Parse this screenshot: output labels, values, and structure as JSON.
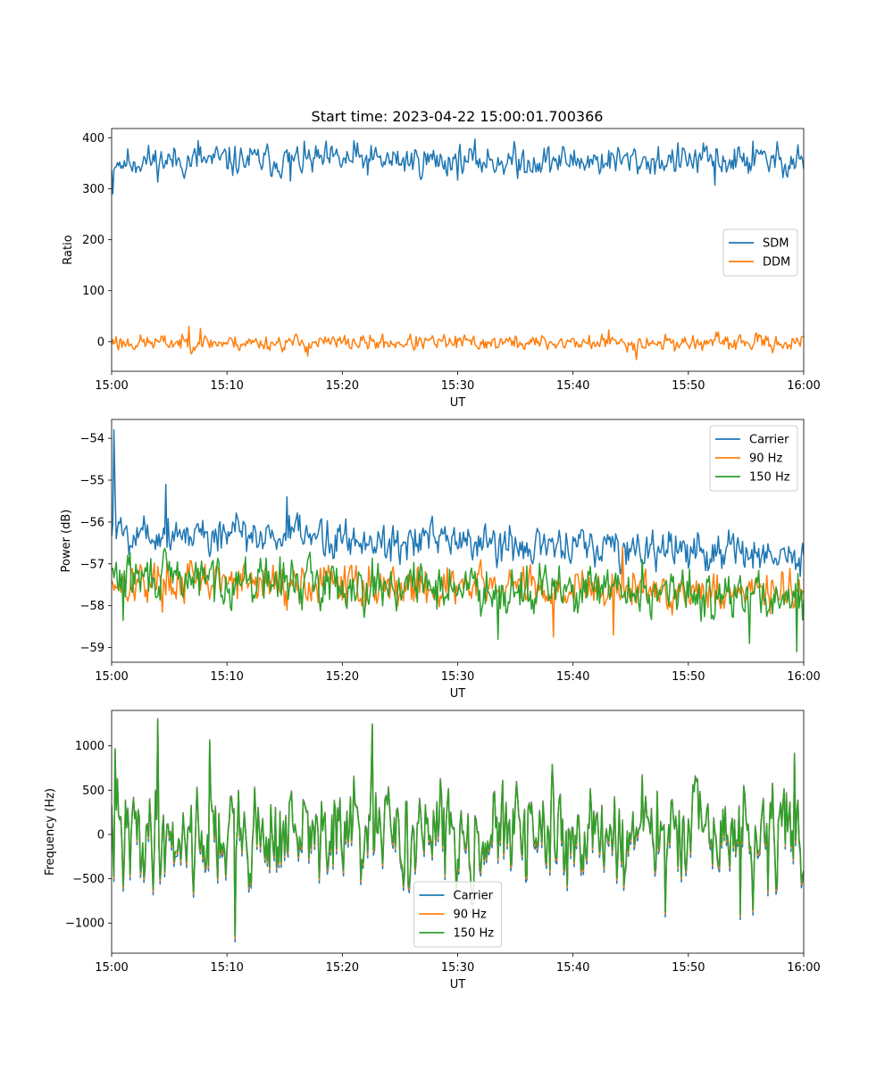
{
  "figure": {
    "title": "Start time: 2023-04-22 15:00:01.700366"
  },
  "chart_data": [
    {
      "type": "line",
      "name": "ratio-panel",
      "xlabel": "UT",
      "ylabel": "Ratio",
      "xlim": [
        "15:00",
        "16:00"
      ],
      "ylim": [
        -58,
        418
      ],
      "xticks": [
        "15:00",
        "15:10",
        "15:20",
        "15:30",
        "15:40",
        "15:50",
        "16:00"
      ],
      "yticks": [
        0,
        100,
        200,
        300,
        400
      ],
      "legend_loc": "center-right",
      "series": [
        {
          "name": "SDM",
          "color": "#1f77b4",
          "mean": 355,
          "amp": 22,
          "seed": 11,
          "spikes": [
            [
              0.1,
              290
            ],
            [
              1,
              340
            ],
            [
              7.5,
              394
            ],
            [
              15.5,
              315
            ],
            [
              21,
              394
            ],
            [
              35.2,
              320
            ],
            [
              55.6,
              393
            ],
            [
              52.3,
              307
            ],
            [
              59.5,
              386
            ]
          ]
        },
        {
          "name": "DDM",
          "color": "#ff7f0e",
          "mean": -2,
          "amp": 11,
          "seed": 23,
          "spikes": [
            [
              6.7,
              30
            ],
            [
              7.7,
              26
            ],
            [
              17,
              -28
            ],
            [
              45.5,
              -35
            ],
            [
              43.1,
              23
            ],
            [
              0.4,
              10
            ]
          ]
        }
      ]
    },
    {
      "type": "line",
      "name": "power-panel",
      "xlabel": "UT",
      "ylabel": "Power (dB)",
      "xlim": [
        "15:00",
        "16:00"
      ],
      "ylim": [
        -59.35,
        -53.55
      ],
      "xticks": [
        "15:00",
        "15:10",
        "15:20",
        "15:30",
        "15:40",
        "15:50",
        "16:00"
      ],
      "yticks": [
        -54,
        -55,
        -56,
        -57,
        -58,
        -59
      ],
      "legend_loc": "upper-right",
      "series": [
        {
          "name": "Carrier",
          "color": "#1f77b4",
          "start": -56.2,
          "end": -56.8,
          "amp": 0.35,
          "seed": 5,
          "spikes": [
            [
              0.15,
              -53.8
            ],
            [
              0.3,
              -55.3
            ],
            [
              4.7,
              -55.1
            ],
            [
              15.2,
              -55.4
            ],
            [
              59.7,
              -57.3
            ]
          ]
        },
        {
          "name": "90 Hz",
          "color": "#ff7f0e",
          "start": -57.4,
          "end": -57.7,
          "amp": 0.35,
          "seed": 17,
          "spikes": [
            [
              43.5,
              -58.7
            ],
            [
              38.3,
              -58.75
            ],
            [
              44.3,
              -56.6
            ]
          ]
        },
        {
          "name": "150 Hz",
          "color": "#2ca02c",
          "start": -57.3,
          "end": -57.8,
          "amp": 0.4,
          "seed": 29,
          "spikes": [
            [
              59.4,
              -59.1
            ],
            [
              33.5,
              -58.8
            ],
            [
              55.3,
              -58.9
            ],
            [
              1,
              -58.35
            ],
            [
              46,
              -56.9
            ]
          ]
        }
      ]
    },
    {
      "type": "line",
      "name": "frequency-panel",
      "xlabel": "UT",
      "ylabel": "Frequency (Hz)",
      "xlim": [
        "15:00",
        "16:00"
      ],
      "ylim": [
        -1340,
        1400
      ],
      "xticks": [
        "15:00",
        "15:10",
        "15:20",
        "15:30",
        "15:40",
        "15:50",
        "16:00"
      ],
      "yticks": [
        1000,
        500,
        0,
        -500,
        -1000
      ],
      "legend_loc": "lower-center",
      "series": [
        {
          "name": "Carrier",
          "color": "#1f77b4",
          "offset": -60
        },
        {
          "name": "90 Hz",
          "color": "#ff7f0e",
          "offset": -25
        },
        {
          "name": "150 Hz",
          "color": "#2ca02c",
          "offset": 0
        }
      ],
      "base": {
        "mean": 0,
        "amp": 380,
        "seed": 41,
        "spikes": [
          [
            4,
            1290
          ],
          [
            10.7,
            -1150
          ],
          [
            8.5,
            1050
          ],
          [
            22.6,
            1230
          ],
          [
            1.0,
            -580
          ],
          [
            0.3,
            950
          ],
          [
            48,
            -870
          ],
          [
            54.5,
            -900
          ],
          [
            55.6,
            -850
          ],
          [
            59.2,
            900
          ]
        ]
      }
    }
  ]
}
